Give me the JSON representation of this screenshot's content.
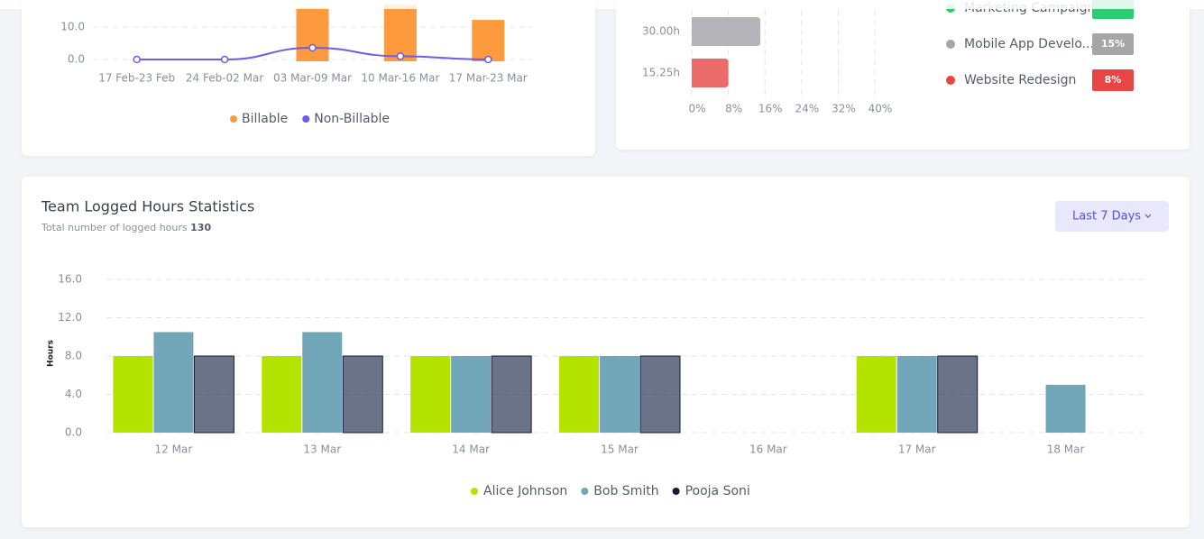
{
  "chart_data": [
    {
      "type": "bar-line",
      "categories": [
        "17 Feb-23 Feb",
        "24 Feb-02 Mar",
        "03 Mar-09 Mar",
        "10 Mar-16 Mar",
        "17 Mar-23 Mar"
      ],
      "series": [
        {
          "name": "Billable",
          "color": "#fd9a3e",
          "kind": "bar",
          "values": [
            0,
            0,
            16,
            17,
            12.2
          ]
        },
        {
          "name": "Non-Billable",
          "color": "#6c5ce7",
          "kind": "line",
          "values": [
            0,
            0,
            3.6,
            1,
            0
          ]
        }
      ],
      "ylim": [
        0,
        20
      ],
      "yticks": [
        {
          "value": 0,
          "label": "0.0"
        },
        {
          "value": 10,
          "label": "10.0"
        }
      ],
      "grid": true
    },
    {
      "type": "hbar",
      "categories": [
        "30.00h",
        "15.25h"
      ],
      "values": [
        15,
        8
      ],
      "colors": [
        "#b4b4b8",
        "#eb6b6b"
      ],
      "xlim": [
        0,
        40
      ],
      "xticks": [
        {
          "value": 0,
          "label": "0%"
        },
        {
          "value": 8,
          "label": "8%"
        },
        {
          "value": 16,
          "label": "16%"
        },
        {
          "value": 24,
          "label": "24%"
        },
        {
          "value": 32,
          "label": "32%"
        },
        {
          "value": 40,
          "label": "40%"
        }
      ],
      "grid": true,
      "legend": [
        {
          "name": "Marketing Campaign",
          "color": "#2ecc71"
        },
        {
          "name": "Mobile App Develo...",
          "color": "#a6a6a6",
          "badge": "15%"
        },
        {
          "name": "Website Redesign",
          "color": "#e84545",
          "badge": "8%"
        }
      ]
    },
    {
      "type": "bar",
      "title": "Team Logged Hours Statistics",
      "subtitle": "Total number of logged hours",
      "total": 130,
      "filter": "Last 7 Days",
      "y_label": "Hours",
      "categories": [
        "12 Mar",
        "13 Mar",
        "14 Mar",
        "15 Mar",
        "16 Mar",
        "17 Mar",
        "18 Mar"
      ],
      "series": [
        {
          "name": "Alice Johnson",
          "color": "#b5e300",
          "values": [
            8,
            8,
            8,
            8,
            0,
            8,
            0
          ]
        },
        {
          "name": "Bob Smith",
          "color": "#72a7b9",
          "values": [
            10.5,
            10.5,
            8,
            8,
            0,
            8,
            5
          ]
        },
        {
          "name": "Pooja Soni",
          "color": "#0f1d3d",
          "values": [
            8,
            8,
            8,
            8,
            0,
            8,
            0
          ]
        }
      ],
      "ylim": [
        0,
        16
      ],
      "yticks": [
        {
          "value": 0,
          "label": "0.0"
        },
        {
          "value": 4,
          "label": "4.0"
        },
        {
          "value": 8,
          "label": "8.0"
        },
        {
          "value": 12,
          "label": "12.0"
        },
        {
          "value": 16,
          "label": "16.0"
        }
      ],
      "grid": true
    }
  ]
}
